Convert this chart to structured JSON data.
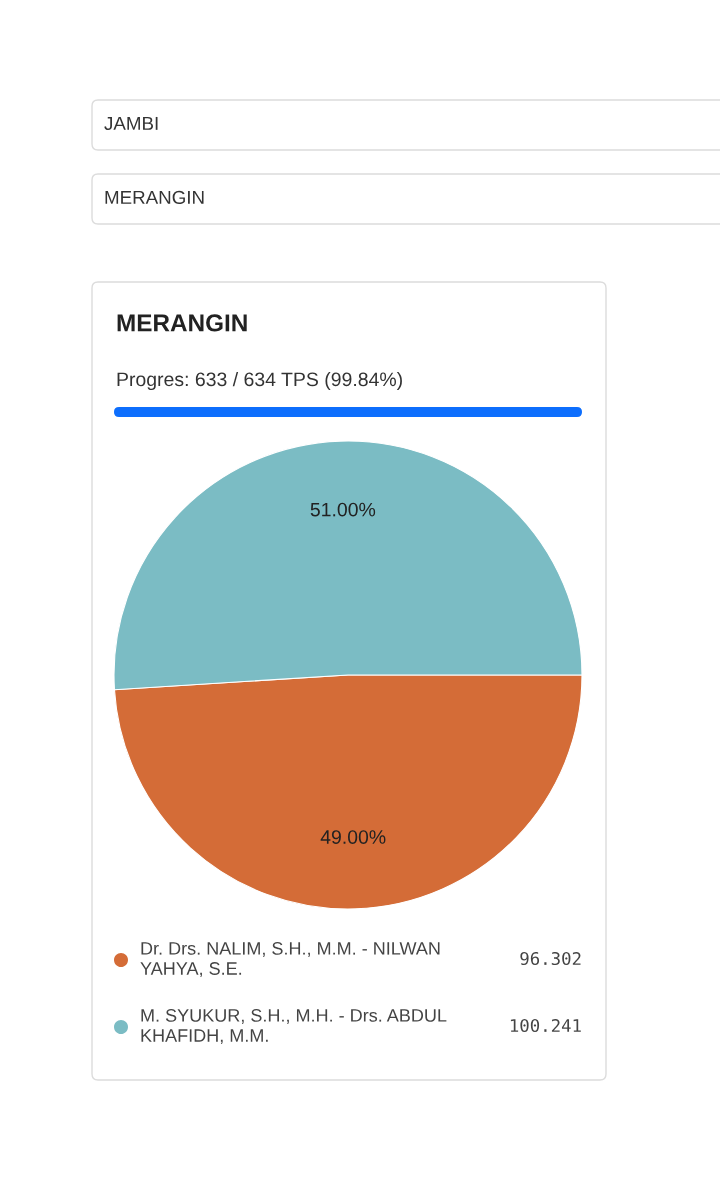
{
  "chart_data": {
    "type": "pie",
    "title": "MERANGIN",
    "subtitle": "Progres: 633 / 634 TPS (99.84%)",
    "categories": [
      "Dr. Drs. NALIM, S.H., M.M. - NILWAN YAHYA, S.E.",
      "M. SYUKUR, S.H., M.H. - Drs. ABDUL KHAFIDH, M.M."
    ],
    "values": [
      96.302,
      100.241
    ],
    "colors": [
      "#d46c37",
      "#7bbcc4"
    ],
    "value_labels": [
      "96.302",
      "100.241"
    ],
    "legend": "bottom",
    "annotations": [
      "JAMBI",
      "MERANGIN",
      {
        "text": "49.00%",
        "x": "Dr. Drs. NALIM, S.H., M.M. - NILWAN YAHYA, S.E."
      },
      {
        "text": "51.00%",
        "x": "M. SYUKUR, S.H., M.H. - Drs. ABDUL KHAFIDH, M.M."
      }
    ]
  }
}
